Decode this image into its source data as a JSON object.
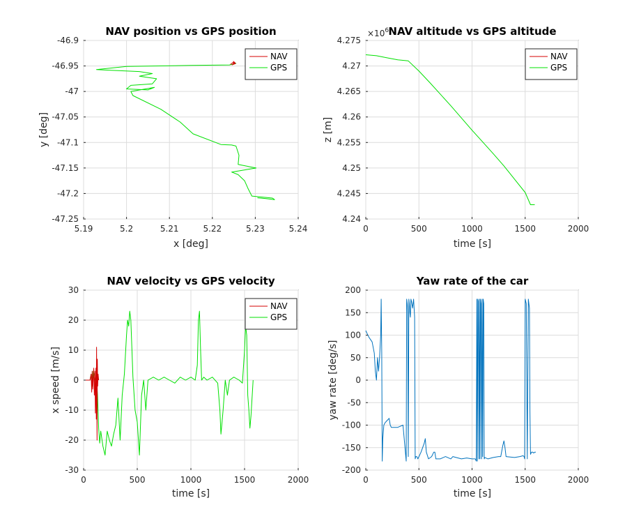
{
  "chart_data": [
    {
      "type": "line",
      "title": "NAV position vs GPS position",
      "xlabel": "x [deg]",
      "ylabel": "y [deg]",
      "xlim": [
        5.19,
        5.24
      ],
      "ylim": [
        -47.25,
        -46.9
      ],
      "xticks": [
        "5.19",
        "5.2",
        "5.21",
        "5.22",
        "5.23",
        "5.24"
      ],
      "yticks": [
        "-47.25",
        "-47.2",
        "-47.15",
        "-47.1",
        "-47.05",
        "-47",
        "-46.95",
        "-46.9"
      ],
      "grid": true,
      "legend": "top-right",
      "series": [
        {
          "name": "NAV",
          "color": "#d40000",
          "x": [
            5.2242,
            5.2248,
            5.2252,
            5.2249,
            5.2254,
            5.2246,
            5.2251
          ],
          "y": [
            -46.947,
            -46.943,
            -46.946,
            -46.941,
            -46.945,
            -46.948,
            -46.944
          ]
        },
        {
          "name": "GPS",
          "color": "#00e000",
          "x": [
            5.2253,
            5.2248,
            5.2255,
            5.224,
            5.215,
            5.2,
            5.193,
            5.195,
            5.203,
            5.206,
            5.203,
            5.207,
            5.206,
            5.201,
            5.2,
            5.205,
            5.2065,
            5.201,
            5.2015,
            5.208,
            5.2125,
            5.2155,
            5.222,
            5.2245,
            5.2255,
            5.2262,
            5.226,
            5.2302,
            5.2245,
            5.226,
            5.2275,
            5.2283,
            5.2292,
            5.234,
            5.2345,
            5.2325,
            5.2305
          ],
          "y": [
            -46.943,
            -46.947,
            -46.945,
            -46.948,
            -46.949,
            -46.951,
            -46.957,
            -46.958,
            -46.961,
            -46.965,
            -46.97,
            -46.975,
            -46.985,
            -46.988,
            -46.995,
            -46.997,
            -46.992,
            -47.0,
            -47.008,
            -47.035,
            -47.06,
            -47.083,
            -47.104,
            -47.105,
            -47.107,
            -47.125,
            -47.143,
            -47.15,
            -47.158,
            -47.163,
            -47.175,
            -47.19,
            -47.205,
            -47.209,
            -47.212,
            -47.21,
            -47.2085
          ]
        }
      ]
    },
    {
      "type": "line",
      "title": "NAV altitude vs GPS altitude",
      "xlabel": "time [s]",
      "ylabel": "z [m]",
      "exponent_label": "×10",
      "exponent_power": "6",
      "xlim": [
        0,
        2000
      ],
      "ylim": [
        4.24,
        4.275
      ],
      "xticks": [
        "0",
        "500",
        "1000",
        "1500",
        "2000"
      ],
      "yticks": [
        "4.24",
        "4.245",
        "4.25",
        "4.255",
        "4.26",
        "4.265",
        "4.27",
        "4.275"
      ],
      "grid": true,
      "legend": "top-right",
      "series": [
        {
          "name": "NAV",
          "color": "#d40000",
          "x": [],
          "y": []
        },
        {
          "name": "GPS",
          "color": "#00e000",
          "x": [
            0,
            100,
            200,
            300,
            400,
            500,
            600,
            700,
            800,
            900,
            1000,
            1100,
            1200,
            1300,
            1400,
            1500,
            1550,
            1590
          ],
          "y": [
            4.2722,
            4.272,
            4.2716,
            4.2712,
            4.271,
            4.269,
            4.2668,
            4.2645,
            4.2622,
            4.2598,
            4.2574,
            4.2551,
            4.2528,
            4.2504,
            4.2478,
            4.2452,
            4.2428,
            4.2428
          ]
        }
      ]
    },
    {
      "type": "line",
      "title": "NAV velocity vs GPS velocity",
      "xlabel": "time [s]",
      "ylabel": "x speed [m/s]",
      "xlim": [
        0,
        2000
      ],
      "ylim": [
        -30,
        30
      ],
      "xticks": [
        "0",
        "500",
        "1000",
        "1500",
        "2000"
      ],
      "yticks": [
        "-30",
        "-20",
        "-10",
        "0",
        "10",
        "20",
        "30"
      ],
      "grid": true,
      "legend": "top-right",
      "series": [
        {
          "name": "NAV",
          "color": "#d40000",
          "x": [
            0,
            60,
            70,
            75,
            80,
            85,
            90,
            95,
            100,
            105,
            110,
            115,
            118,
            121,
            125,
            128,
            131,
            135,
            140
          ],
          "y": [
            0,
            0,
            2,
            -4,
            3,
            -3,
            1,
            4,
            -5,
            3,
            -11,
            4,
            -13,
            11,
            -20,
            7,
            -2,
            2,
            0
          ]
        },
        {
          "name": "GPS",
          "color": "#00e000",
          "x": [
            0,
            60,
            70,
            80,
            90,
            100,
            110,
            120,
            130,
            140,
            150,
            160,
            180,
            200,
            220,
            240,
            260,
            280,
            300,
            320,
            340,
            360,
            380,
            400,
            410,
            420,
            430,
            440,
            460,
            480,
            500,
            520,
            540,
            560,
            580,
            600,
            650,
            700,
            750,
            800,
            850,
            900,
            950,
            1000,
            1040,
            1060,
            1070,
            1080,
            1090,
            1100,
            1120,
            1150,
            1200,
            1250,
            1270,
            1280,
            1290,
            1300,
            1320,
            1340,
            1360,
            1400,
            1450,
            1480,
            1500,
            1510,
            1520,
            1530,
            1540,
            1550,
            1560,
            1580
          ],
          "y": [
            0,
            0,
            2,
            -2,
            3,
            2,
            0,
            1,
            -5,
            -16,
            -21,
            -17,
            -22,
            -25,
            -17,
            -20,
            -22,
            -18,
            -15,
            -6,
            -20,
            -5,
            2,
            15,
            20,
            18,
            23,
            20,
            1,
            -10,
            -14,
            -25,
            -5,
            0,
            -10,
            0,
            1,
            0,
            1,
            0,
            -1,
            1,
            0,
            1,
            0,
            5,
            20,
            23,
            10,
            0,
            1,
            0,
            1,
            -1,
            -10,
            -18,
            -14,
            -10,
            0,
            -5,
            0,
            1,
            0,
            -1,
            10,
            18,
            15,
            -5,
            -10,
            -16,
            -12,
            0
          ]
        }
      ]
    },
    {
      "type": "line",
      "title": "Yaw rate of the car",
      "xlabel": "time [s]",
      "ylabel": "yaw rate [deg/s]",
      "xlim": [
        0,
        2000
      ],
      "ylim": [
        -200,
        200
      ],
      "xticks": [
        "0",
        "500",
        "1000",
        "1500",
        "2000"
      ],
      "yticks": [
        "-200",
        "-150",
        "-100",
        "-50",
        "0",
        "50",
        "100",
        "150",
        "200"
      ],
      "grid": true,
      "series": [
        {
          "name": "",
          "color": "#0072bd",
          "x": [
            0,
            10,
            30,
            60,
            80,
            90,
            100,
            110,
            120,
            130,
            140,
            145,
            150,
            155,
            160,
            170,
            180,
            200,
            220,
            230,
            240,
            260,
            300,
            350,
            380,
            385,
            390,
            395,
            400,
            405,
            410,
            415,
            420,
            425,
            430,
            440,
            450,
            460,
            465,
            470,
            480,
            490,
            500,
            520,
            550,
            560,
            570,
            590,
            620,
            640,
            650,
            660,
            700,
            750,
            800,
            820,
            850,
            900,
            950,
            1000,
            1030,
            1040,
            1045,
            1050,
            1055,
            1060,
            1065,
            1070,
            1075,
            1080,
            1085,
            1090,
            1095,
            1100,
            1105,
            1110,
            1115,
            1120,
            1150,
            1200,
            1250,
            1270,
            1290,
            1300,
            1310,
            1320,
            1400,
            1450,
            1480,
            1490,
            1495,
            1500,
            1510,
            1520,
            1530,
            1540,
            1545,
            1550,
            1560,
            1570,
            1580,
            1590,
            1600
          ],
          "y": [
            110,
            105,
            95,
            85,
            60,
            20,
            0,
            50,
            20,
            50,
            100,
            180,
            60,
            -180,
            -130,
            -100,
            -95,
            -90,
            -85,
            -100,
            -105,
            -105,
            -105,
            -100,
            -180,
            180,
            170,
            150,
            -170,
            180,
            170,
            150,
            140,
            180,
            175,
            160,
            180,
            140,
            -175,
            -170,
            -170,
            -175,
            -170,
            -160,
            -140,
            -130,
            -160,
            -175,
            -170,
            -160,
            -160,
            -175,
            -175,
            -170,
            -175,
            -170,
            -172,
            -175,
            -173,
            -175,
            -175,
            -180,
            180,
            -180,
            180,
            175,
            -175,
            180,
            -175,
            180,
            170,
            -175,
            180,
            -170,
            180,
            170,
            -175,
            -172,
            -175,
            -172,
            -170,
            -170,
            -145,
            -135,
            -150,
            -170,
            -172,
            -170,
            -168,
            -170,
            -175,
            180,
            170,
            -175,
            180,
            160,
            -70,
            -165,
            -160,
            -160,
            -162,
            -160,
            -160
          ]
        }
      ]
    }
  ]
}
